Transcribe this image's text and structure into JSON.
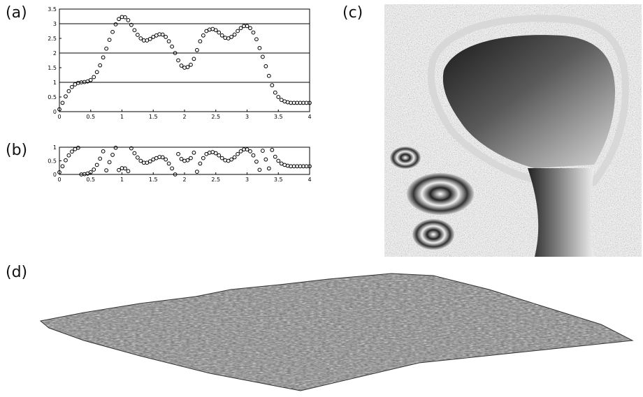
{
  "labels": {
    "a": "(a)",
    "b": "(b)",
    "c": "(c)",
    "d": "(d)"
  },
  "chart_data": [
    {
      "type": "scatter",
      "x": [
        0.0,
        0.05,
        0.1,
        0.15,
        0.2,
        0.25,
        0.3,
        0.35,
        0.4,
        0.45,
        0.5,
        0.55,
        0.6,
        0.65,
        0.7,
        0.75,
        0.8,
        0.85,
        0.9,
        0.95,
        1.0,
        1.05,
        1.1,
        1.15,
        1.2,
        1.25,
        1.3,
        1.35,
        1.4,
        1.45,
        1.5,
        1.55,
        1.6,
        1.65,
        1.7,
        1.75,
        1.8,
        1.85,
        1.9,
        1.95,
        2.0,
        2.05,
        2.1,
        2.15,
        2.2,
        2.25,
        2.3,
        2.35,
        2.4,
        2.45,
        2.5,
        2.55,
        2.6,
        2.65,
        2.7,
        2.75,
        2.8,
        2.85,
        2.9,
        2.95,
        3.0,
        3.05,
        3.1,
        3.15,
        3.2,
        3.25,
        3.3,
        3.35,
        3.4,
        3.45,
        3.5,
        3.55,
        3.6,
        3.65,
        3.7,
        3.75,
        3.8,
        3.85,
        3.9,
        3.95,
        4.0
      ],
      "y": [
        0.08,
        0.3,
        0.52,
        0.7,
        0.84,
        0.93,
        0.98,
        1.0,
        1.01,
        1.03,
        1.08,
        1.18,
        1.35,
        1.58,
        1.85,
        2.15,
        2.45,
        2.72,
        2.98,
        3.16,
        3.23,
        3.22,
        3.12,
        2.96,
        2.78,
        2.62,
        2.5,
        2.43,
        2.43,
        2.48,
        2.55,
        2.6,
        2.64,
        2.63,
        2.55,
        2.4,
        2.22,
        2.0,
        1.75,
        1.57,
        1.5,
        1.52,
        1.6,
        1.8,
        2.1,
        2.4,
        2.6,
        2.75,
        2.8,
        2.82,
        2.78,
        2.7,
        2.6,
        2.52,
        2.5,
        2.55,
        2.63,
        2.75,
        2.85,
        2.92,
        2.92,
        2.85,
        2.7,
        2.47,
        2.17,
        1.87,
        1.55,
        1.22,
        0.9,
        0.65,
        0.5,
        0.4,
        0.35,
        0.32,
        0.3,
        0.3,
        0.3,
        0.3,
        0.3,
        0.3,
        0.3
      ],
      "xlim": [
        0,
        4
      ],
      "ylim": [
        0,
        3.5
      ],
      "xticks": [
        "0",
        "0.5",
        "1",
        "1.5",
        "2",
        "2.5",
        "3",
        "3.5",
        "4"
      ],
      "yticks": [
        "0",
        "0.5",
        "1",
        "1.5",
        "2",
        "2.5",
        "3",
        "3.5"
      ],
      "hlines": [
        1,
        2,
        3
      ]
    },
    {
      "type": "scatter",
      "x": [
        0.0,
        0.05,
        0.1,
        0.15,
        0.2,
        0.25,
        0.3,
        0.35,
        0.4,
        0.45,
        0.5,
        0.55,
        0.6,
        0.65,
        0.7,
        0.75,
        0.8,
        0.85,
        0.9,
        0.95,
        1.0,
        1.05,
        1.1,
        1.15,
        1.2,
        1.25,
        1.3,
        1.35,
        1.4,
        1.45,
        1.5,
        1.55,
        1.6,
        1.65,
        1.7,
        1.75,
        1.8,
        1.85,
        1.9,
        1.95,
        2.0,
        2.05,
        2.1,
        2.15,
        2.2,
        2.25,
        2.3,
        2.35,
        2.4,
        2.45,
        2.5,
        2.55,
        2.6,
        2.65,
        2.7,
        2.75,
        2.8,
        2.85,
        2.9,
        2.95,
        3.0,
        3.05,
        3.1,
        3.15,
        3.2,
        3.25,
        3.3,
        3.35,
        3.4,
        3.45,
        3.5,
        3.55,
        3.6,
        3.65,
        3.7,
        3.75,
        3.8,
        3.85,
        3.9,
        3.95,
        4.0
      ],
      "y": [
        0.08,
        0.3,
        0.52,
        0.7,
        0.84,
        0.93,
        0.98,
        0.0,
        0.01,
        0.03,
        0.08,
        0.18,
        0.35,
        0.58,
        0.85,
        0.15,
        0.45,
        0.72,
        0.98,
        0.16,
        0.23,
        0.22,
        0.12,
        0.96,
        0.78,
        0.62,
        0.5,
        0.43,
        0.43,
        0.48,
        0.55,
        0.6,
        0.64,
        0.63,
        0.55,
        0.4,
        0.22,
        0.0,
        0.75,
        0.57,
        0.5,
        0.52,
        0.6,
        0.8,
        0.1,
        0.4,
        0.6,
        0.75,
        0.8,
        0.82,
        0.78,
        0.7,
        0.6,
        0.52,
        0.5,
        0.55,
        0.63,
        0.75,
        0.85,
        0.92,
        0.92,
        0.85,
        0.7,
        0.47,
        0.17,
        0.87,
        0.55,
        0.22,
        0.9,
        0.65,
        0.5,
        0.4,
        0.35,
        0.32,
        0.3,
        0.3,
        0.3,
        0.3,
        0.3,
        0.3,
        0.3
      ],
      "xlim": [
        0,
        4
      ],
      "ylim": [
        0,
        1
      ],
      "xticks": [
        "0",
        "0.5",
        "1",
        "1.5",
        "2",
        "2.5",
        "3",
        "3.5",
        "4"
      ],
      "yticks": [
        "0",
        "0.5",
        "1"
      ]
    }
  ]
}
